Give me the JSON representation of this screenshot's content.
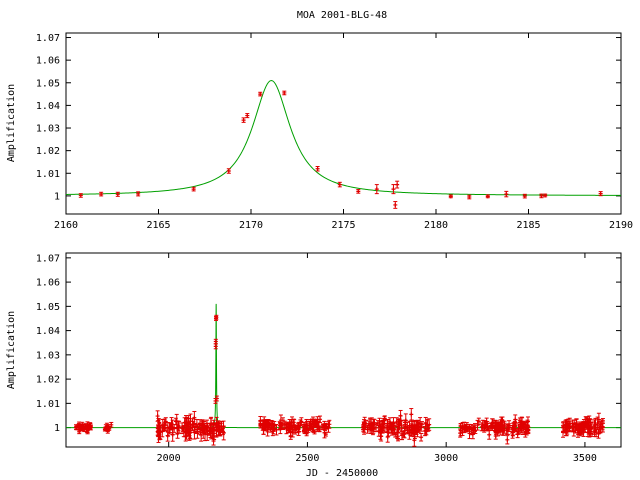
{
  "title": "MOA 2001-BLG-48",
  "colors": {
    "model": "#00a000",
    "data": "#e00000",
    "axis": "#000000",
    "background": "#ffffff"
  },
  "chart_data": [
    {
      "type": "scatter",
      "title": "MOA 2001-BLG-48",
      "xlabel": "",
      "ylabel": "Amplification",
      "xlim": [
        2160,
        2190
      ],
      "ylim": [
        0.992,
        1.072
      ],
      "xticks": [
        2160,
        2165,
        2170,
        2175,
        2180,
        2185,
        2190
      ],
      "yticks": [
        1,
        1.01,
        1.02,
        1.03,
        1.04,
        1.05,
        1.06,
        1.07
      ],
      "xtick_labels": [
        "2160",
        "2165",
        "2170",
        "2175",
        "2180",
        "2185",
        "2190"
      ],
      "ytick_labels": [
        "1",
        "1.01",
        "1.02",
        "1.03",
        "1.04",
        "1.05",
        "1.06",
        "1.07"
      ],
      "grid": false,
      "legend": "none",
      "model": {
        "t0": 2171.1,
        "amplitude": 0.051,
        "width": 1.25,
        "baseline": 1.0
      },
      "points": [
        {
          "x": 2160.8,
          "y": 1.0002,
          "err": 0.0008
        },
        {
          "x": 2161.9,
          "y": 1.0008,
          "err": 0.0008
        },
        {
          "x": 2162.8,
          "y": 1.0007,
          "err": 0.0009
        },
        {
          "x": 2163.9,
          "y": 1.0009,
          "err": 0.0009
        },
        {
          "x": 2166.9,
          "y": 1.003,
          "err": 0.0008
        },
        {
          "x": 2168.8,
          "y": 1.011,
          "err": 0.001
        },
        {
          "x": 2169.6,
          "y": 1.0335,
          "err": 0.001
        },
        {
          "x": 2169.8,
          "y": 1.0355,
          "err": 0.0009
        },
        {
          "x": 2170.5,
          "y": 1.045,
          "err": 0.0008
        },
        {
          "x": 2171.8,
          "y": 1.0455,
          "err": 0.0008
        },
        {
          "x": 2173.6,
          "y": 1.012,
          "err": 0.001
        },
        {
          "x": 2174.8,
          "y": 1.005,
          "err": 0.001
        },
        {
          "x": 2175.8,
          "y": 1.002,
          "err": 0.0008
        },
        {
          "x": 2176.8,
          "y": 1.003,
          "err": 0.002
        },
        {
          "x": 2177.7,
          "y": 1.003,
          "err": 0.002
        },
        {
          "x": 2177.8,
          "y": 0.996,
          "err": 0.0015
        },
        {
          "x": 2177.9,
          "y": 1.005,
          "err": 0.0015
        },
        {
          "x": 2180.8,
          "y": 0.9998,
          "err": 0.0006
        },
        {
          "x": 2181.8,
          "y": 0.9995,
          "err": 0.0008
        },
        {
          "x": 2182.8,
          "y": 0.9998,
          "err": 0.0006
        },
        {
          "x": 2183.8,
          "y": 1.0008,
          "err": 0.0012
        },
        {
          "x": 2184.8,
          "y": 0.9999,
          "err": 0.0008
        },
        {
          "x": 2185.7,
          "y": 1.0,
          "err": 0.0008
        },
        {
          "x": 2185.9,
          "y": 1.0002,
          "err": 0.0006
        },
        {
          "x": 2188.9,
          "y": 1.001,
          "err": 0.0009
        }
      ]
    },
    {
      "type": "scatter",
      "title": "",
      "xlabel": "JD - 2450000",
      "ylabel": "Amplification",
      "xlim": [
        1630,
        3630
      ],
      "ylim": [
        0.992,
        1.072
      ],
      "xticks": [
        2000,
        2500,
        3000,
        3500
      ],
      "yticks": [
        1,
        1.01,
        1.02,
        1.03,
        1.04,
        1.05,
        1.06,
        1.07
      ],
      "xtick_labels": [
        "2000",
        "2500",
        "3000",
        "3500"
      ],
      "ytick_labels": [
        "1",
        "1.01",
        "1.02",
        "1.03",
        "1.04",
        "1.05",
        "1.06",
        "1.07"
      ],
      "grid": false,
      "legend": "none",
      "model": {
        "t0": 2171.1,
        "amplitude": 0.051,
        "width": 1.25,
        "baseline": 1.0
      },
      "seasons": [
        {
          "x_range": [
            1660,
            1730
          ],
          "y_center": 1.0,
          "scatter": 0.0015,
          "err": 0.001,
          "n": 30
        },
        {
          "x_range": [
            1770,
            1800
          ],
          "y_center": 0.9998,
          "scatter": 0.0015,
          "err": 0.001,
          "n": 10
        },
        {
          "x_range": [
            1960,
            2200
          ],
          "y_center": 1.0,
          "scatter": 0.0035,
          "err": 0.002,
          "n": 120
        },
        {
          "x_range": [
            2330,
            2580
          ],
          "y_center": 1.0005,
          "scatter": 0.0025,
          "err": 0.0015,
          "n": 110
        },
        {
          "x_range": [
            2700,
            2940
          ],
          "y_center": 1.0,
          "scatter": 0.003,
          "err": 0.0018,
          "n": 110
        },
        {
          "x_range": [
            3050,
            3300
          ],
          "y_center": 1.0,
          "scatter": 0.0025,
          "err": 0.0015,
          "n": 110
        },
        {
          "x_range": [
            3420,
            3570
          ],
          "y_center": 1.0,
          "scatter": 0.003,
          "err": 0.0018,
          "n": 80
        }
      ],
      "event_points": [
        {
          "x": 2169.6,
          "y": 1.0335,
          "err": 0.001
        },
        {
          "x": 2169.8,
          "y": 1.0355,
          "err": 0.0009
        },
        {
          "x": 2170.5,
          "y": 1.045,
          "err": 0.0008
        },
        {
          "x": 2171.8,
          "y": 1.0455,
          "err": 0.0008
        },
        {
          "x": 2168.8,
          "y": 1.011,
          "err": 0.001
        },
        {
          "x": 2173.6,
          "y": 1.012,
          "err": 0.001
        }
      ]
    }
  ]
}
